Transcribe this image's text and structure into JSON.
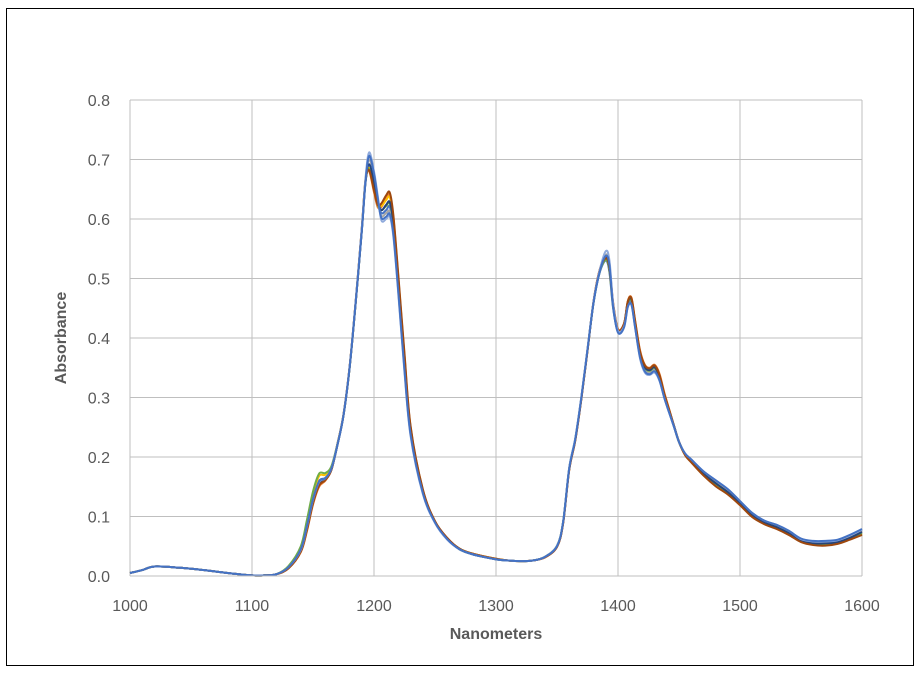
{
  "chart_data": {
    "type": "line",
    "title": "",
    "xlabel": "Nanometers",
    "ylabel": "Absorbance",
    "xlim": [
      1000,
      1600
    ],
    "ylim": [
      0,
      0.8
    ],
    "x_ticks": [
      "1000",
      "1100",
      "1200",
      "1300",
      "1400",
      "1500",
      "1600"
    ],
    "y_ticks": [
      "0.0",
      "0.1",
      "0.2",
      "0.3",
      "0.4",
      "0.5",
      "0.6",
      "0.7",
      "0.8"
    ],
    "grid": true,
    "legend": "none",
    "x": [
      1000,
      1010,
      1020,
      1040,
      1060,
      1080,
      1100,
      1110,
      1120,
      1130,
      1140,
      1145,
      1150,
      1155,
      1160,
      1165,
      1170,
      1175,
      1180,
      1185,
      1190,
      1193,
      1196,
      1200,
      1203,
      1206,
      1210,
      1213,
      1216,
      1220,
      1225,
      1230,
      1240,
      1250,
      1260,
      1270,
      1280,
      1290,
      1300,
      1310,
      1320,
      1330,
      1340,
      1350,
      1355,
      1360,
      1365,
      1370,
      1375,
      1380,
      1385,
      1390,
      1393,
      1396,
      1400,
      1405,
      1408,
      1411,
      1414,
      1418,
      1422,
      1426,
      1430,
      1434,
      1438,
      1442,
      1446,
      1450,
      1455,
      1460,
      1470,
      1480,
      1490,
      1500,
      1510,
      1520,
      1530,
      1540,
      1550,
      1560,
      1570,
      1580,
      1590,
      1600
    ],
    "series": [
      {
        "color": "#4472C4",
        "values": [
          0.005,
          0.01,
          0.016,
          0.014,
          0.01,
          0.005,
          0.001,
          0.001,
          0.003,
          0.015,
          0.045,
          0.085,
          0.13,
          0.16,
          0.165,
          0.18,
          0.22,
          0.27,
          0.35,
          0.46,
          0.58,
          0.66,
          0.69,
          0.66,
          0.63,
          0.61,
          0.615,
          0.62,
          0.58,
          0.48,
          0.35,
          0.24,
          0.14,
          0.09,
          0.062,
          0.045,
          0.037,
          0.032,
          0.028,
          0.026,
          0.025,
          0.026,
          0.032,
          0.05,
          0.09,
          0.18,
          0.23,
          0.3,
          0.38,
          0.46,
          0.51,
          0.53,
          0.51,
          0.45,
          0.41,
          0.42,
          0.455,
          0.46,
          0.42,
          0.37,
          0.345,
          0.34,
          0.345,
          0.33,
          0.3,
          0.275,
          0.25,
          0.225,
          0.205,
          0.195,
          0.175,
          0.16,
          0.145,
          0.125,
          0.105,
          0.092,
          0.085,
          0.075,
          0.062,
          0.058,
          0.058,
          0.06,
          0.068,
          0.078
        ]
      },
      {
        "color": "#ED7D31",
        "values": [
          0.005,
          0.01,
          0.016,
          0.014,
          0.01,
          0.005,
          0.001,
          0.001,
          0.003,
          0.013,
          0.04,
          0.075,
          0.12,
          0.15,
          0.16,
          0.178,
          0.222,
          0.272,
          0.352,
          0.462,
          0.585,
          0.665,
          0.68,
          0.645,
          0.62,
          0.62,
          0.635,
          0.64,
          0.6,
          0.5,
          0.37,
          0.25,
          0.145,
          0.092,
          0.064,
          0.046,
          0.038,
          0.033,
          0.029,
          0.026,
          0.025,
          0.026,
          0.031,
          0.049,
          0.088,
          0.178,
          0.228,
          0.298,
          0.378,
          0.462,
          0.515,
          0.535,
          0.52,
          0.46,
          0.415,
          0.425,
          0.462,
          0.468,
          0.43,
          0.38,
          0.355,
          0.35,
          0.355,
          0.34,
          0.308,
          0.28,
          0.252,
          0.226,
          0.204,
          0.192,
          0.17,
          0.152,
          0.138,
          0.12,
          0.1,
          0.088,
          0.08,
          0.07,
          0.058,
          0.053,
          0.052,
          0.055,
          0.062,
          0.07
        ]
      },
      {
        "color": "#A5A5A5",
        "values": [
          0.005,
          0.01,
          0.016,
          0.014,
          0.01,
          0.005,
          0.001,
          0.001,
          0.003,
          0.014,
          0.043,
          0.08,
          0.126,
          0.156,
          0.163,
          0.179,
          0.22,
          0.271,
          0.351,
          0.461,
          0.582,
          0.663,
          0.7,
          0.67,
          0.63,
          0.605,
          0.61,
          0.612,
          0.575,
          0.478,
          0.348,
          0.238,
          0.14,
          0.09,
          0.062,
          0.045,
          0.037,
          0.032,
          0.028,
          0.026,
          0.025,
          0.026,
          0.032,
          0.05,
          0.09,
          0.18,
          0.23,
          0.3,
          0.381,
          0.461,
          0.512,
          0.54,
          0.525,
          0.455,
          0.412,
          0.422,
          0.458,
          0.462,
          0.424,
          0.372,
          0.348,
          0.342,
          0.347,
          0.332,
          0.302,
          0.276,
          0.251,
          0.225,
          0.205,
          0.194,
          0.173,
          0.158,
          0.143,
          0.124,
          0.104,
          0.091,
          0.083,
          0.073,
          0.06,
          0.056,
          0.056,
          0.058,
          0.066,
          0.076
        ]
      },
      {
        "color": "#FFC000",
        "values": [
          0.005,
          0.01,
          0.016,
          0.014,
          0.01,
          0.005,
          0.001,
          0.001,
          0.003,
          0.016,
          0.048,
          0.09,
          0.138,
          0.168,
          0.17,
          0.182,
          0.221,
          0.27,
          0.35,
          0.46,
          0.583,
          0.666,
          0.686,
          0.655,
          0.628,
          0.622,
          0.632,
          0.636,
          0.596,
          0.496,
          0.366,
          0.248,
          0.144,
          0.091,
          0.063,
          0.046,
          0.038,
          0.033,
          0.029,
          0.026,
          0.025,
          0.026,
          0.032,
          0.05,
          0.09,
          0.18,
          0.23,
          0.3,
          0.38,
          0.461,
          0.512,
          0.532,
          0.515,
          0.455,
          0.412,
          0.423,
          0.46,
          0.465,
          0.427,
          0.376,
          0.352,
          0.347,
          0.352,
          0.336,
          0.305,
          0.278,
          0.251,
          0.225,
          0.204,
          0.193,
          0.171,
          0.154,
          0.139,
          0.121,
          0.101,
          0.089,
          0.081,
          0.071,
          0.059,
          0.054,
          0.053,
          0.056,
          0.063,
          0.072
        ]
      },
      {
        "color": "#70AD47",
        "values": [
          0.005,
          0.01,
          0.016,
          0.014,
          0.01,
          0.005,
          0.001,
          0.001,
          0.003,
          0.017,
          0.05,
          0.094,
          0.142,
          0.172,
          0.173,
          0.184,
          0.222,
          0.271,
          0.35,
          0.46,
          0.582,
          0.662,
          0.684,
          0.652,
          0.624,
          0.615,
          0.622,
          0.626,
          0.588,
          0.49,
          0.36,
          0.245,
          0.142,
          0.091,
          0.063,
          0.045,
          0.037,
          0.032,
          0.028,
          0.026,
          0.025,
          0.026,
          0.032,
          0.051,
          0.091,
          0.181,
          0.231,
          0.3,
          0.38,
          0.46,
          0.511,
          0.531,
          0.514,
          0.453,
          0.411,
          0.421,
          0.458,
          0.463,
          0.425,
          0.374,
          0.35,
          0.345,
          0.35,
          0.334,
          0.303,
          0.277,
          0.251,
          0.225,
          0.205,
          0.194,
          0.172,
          0.155,
          0.14,
          0.122,
          0.102,
          0.09,
          0.082,
          0.072,
          0.058,
          0.054,
          0.053,
          0.056,
          0.063,
          0.072
        ]
      },
      {
        "color": "#264478",
        "values": [
          0.005,
          0.01,
          0.016,
          0.014,
          0.01,
          0.005,
          0.001,
          0.001,
          0.003,
          0.014,
          0.042,
          0.079,
          0.124,
          0.154,
          0.162,
          0.178,
          0.22,
          0.27,
          0.35,
          0.46,
          0.581,
          0.662,
          0.692,
          0.662,
          0.632,
          0.615,
          0.624,
          0.628,
          0.59,
          0.49,
          0.36,
          0.245,
          0.142,
          0.091,
          0.063,
          0.046,
          0.037,
          0.032,
          0.028,
          0.026,
          0.025,
          0.026,
          0.032,
          0.05,
          0.09,
          0.18,
          0.23,
          0.3,
          0.38,
          0.461,
          0.513,
          0.536,
          0.518,
          0.456,
          0.413,
          0.424,
          0.46,
          0.465,
          0.426,
          0.375,
          0.351,
          0.346,
          0.351,
          0.335,
          0.304,
          0.278,
          0.252,
          0.226,
          0.205,
          0.193,
          0.172,
          0.156,
          0.141,
          0.122,
          0.102,
          0.09,
          0.082,
          0.072,
          0.06,
          0.055,
          0.055,
          0.057,
          0.064,
          0.074
        ]
      },
      {
        "color": "#9E480E",
        "values": [
          0.005,
          0.01,
          0.016,
          0.014,
          0.01,
          0.005,
          0.001,
          0.001,
          0.003,
          0.013,
          0.041,
          0.077,
          0.122,
          0.152,
          0.161,
          0.178,
          0.221,
          0.271,
          0.351,
          0.461,
          0.584,
          0.664,
          0.682,
          0.648,
          0.624,
          0.626,
          0.64,
          0.644,
          0.604,
          0.504,
          0.374,
          0.252,
          0.146,
          0.092,
          0.064,
          0.046,
          0.038,
          0.033,
          0.029,
          0.026,
          0.025,
          0.026,
          0.031,
          0.049,
          0.088,
          0.178,
          0.228,
          0.298,
          0.379,
          0.462,
          0.514,
          0.534,
          0.518,
          0.458,
          0.414,
          0.424,
          0.461,
          0.467,
          0.429,
          0.378,
          0.354,
          0.349,
          0.354,
          0.338,
          0.306,
          0.279,
          0.251,
          0.225,
          0.203,
          0.191,
          0.169,
          0.151,
          0.137,
          0.119,
          0.099,
          0.087,
          0.079,
          0.069,
          0.057,
          0.052,
          0.051,
          0.054,
          0.061,
          0.069
        ]
      },
      {
        "color": "#8FAADC",
        "values": [
          0.005,
          0.01,
          0.016,
          0.014,
          0.01,
          0.005,
          0.001,
          0.001,
          0.003,
          0.015,
          0.044,
          0.083,
          0.128,
          0.158,
          0.164,
          0.18,
          0.221,
          0.271,
          0.351,
          0.462,
          0.585,
          0.668,
          0.712,
          0.68,
          0.64,
          0.598,
          0.6,
          0.604,
          0.568,
          0.472,
          0.342,
          0.235,
          0.138,
          0.089,
          0.061,
          0.045,
          0.037,
          0.032,
          0.028,
          0.026,
          0.025,
          0.026,
          0.032,
          0.051,
          0.091,
          0.182,
          0.232,
          0.302,
          0.382,
          0.462,
          0.514,
          0.546,
          0.53,
          0.458,
          0.412,
          0.42,
          0.452,
          0.456,
          0.418,
          0.366,
          0.342,
          0.338,
          0.342,
          0.328,
          0.299,
          0.274,
          0.25,
          0.225,
          0.206,
          0.196,
          0.176,
          0.161,
          0.146,
          0.126,
          0.106,
          0.093,
          0.086,
          0.076,
          0.062,
          0.058,
          0.058,
          0.06,
          0.068,
          0.078
        ]
      },
      {
        "color": "#4472C4",
        "values": [
          0.005,
          0.01,
          0.016,
          0.014,
          0.01,
          0.005,
          0.001,
          0.001,
          0.003,
          0.015,
          0.045,
          0.084,
          0.129,
          0.159,
          0.164,
          0.18,
          0.22,
          0.27,
          0.35,
          0.46,
          0.58,
          0.662,
          0.706,
          0.676,
          0.636,
          0.602,
          0.604,
          0.608,
          0.572,
          0.476,
          0.346,
          0.238,
          0.14,
          0.09,
          0.062,
          0.045,
          0.037,
          0.032,
          0.028,
          0.026,
          0.025,
          0.026,
          0.032,
          0.05,
          0.09,
          0.18,
          0.23,
          0.3,
          0.38,
          0.46,
          0.511,
          0.538,
          0.522,
          0.452,
          0.409,
          0.418,
          0.452,
          0.456,
          0.418,
          0.368,
          0.344,
          0.339,
          0.344,
          0.329,
          0.299,
          0.274,
          0.25,
          0.225,
          0.206,
          0.196,
          0.176,
          0.161,
          0.146,
          0.126,
          0.106,
          0.093,
          0.086,
          0.076,
          0.063,
          0.059,
          0.059,
          0.061,
          0.069,
          0.079
        ]
      }
    ]
  }
}
